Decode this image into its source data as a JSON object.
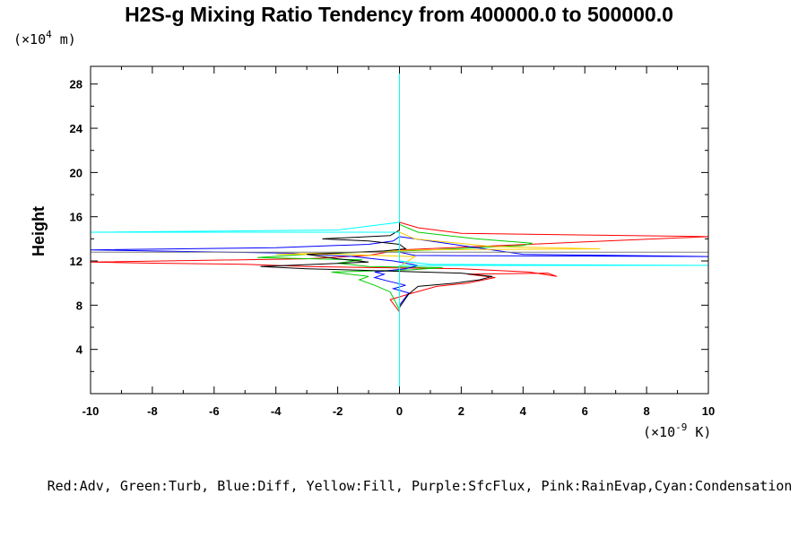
{
  "chart_data": {
    "type": "line",
    "title": "H2S-g Mixing Ratio Tendency from 400000.0 to 500000.0",
    "ylabel": "Height",
    "y_unit_prefix": "(×10",
    "y_unit_exp": "4",
    "y_unit_suffix": " m)",
    "x_unit_prefix": "(×10",
    "x_unit_exp": "-9",
    "x_unit_suffix": " K)",
    "xlim": [
      -10,
      10
    ],
    "ylim": [
      0,
      29.6
    ],
    "x_ticks": [
      -10,
      -8,
      -6,
      -4,
      -2,
      0,
      2,
      4,
      6,
      8,
      10
    ],
    "x_tick_labels": [
      "-10",
      "-8",
      "-6",
      "-4",
      "-2",
      "0",
      "2",
      "4",
      "6",
      "8",
      "10"
    ],
    "y_ticks": [
      4,
      8,
      12,
      16,
      20,
      24,
      28
    ],
    "y_tick_labels": [
      "4",
      "8",
      "12",
      "16",
      "20",
      "24",
      "28"
    ],
    "legend_text": "Red:Adv, Green:Turb, Blue:Diff, Yellow:Fill, Purple:SfcFlux, Pink:RainEvap,Cyan:Condensation",
    "series": [
      {
        "color": "#ff0000",
        "points": [
          [
            0,
            0
          ],
          [
            0,
            7.4
          ],
          [
            -0.3,
            8.5
          ],
          [
            0.3,
            9.0
          ],
          [
            1.2,
            9.7
          ],
          [
            2.2,
            10.0
          ],
          [
            3.1,
            10.5
          ],
          [
            2.2,
            10.8
          ],
          [
            4.8,
            10.9
          ],
          [
            5.1,
            10.6
          ],
          [
            4.2,
            11.0
          ],
          [
            2.0,
            11.3
          ],
          [
            -1.0,
            11.4
          ],
          [
            -3.0,
            11.5
          ],
          [
            -5.0,
            11.7
          ],
          [
            -8.0,
            11.8
          ],
          [
            -10.5,
            11.9
          ],
          [
            -3.0,
            12.2
          ],
          [
            -1.0,
            12.5
          ],
          [
            0,
            13.0
          ],
          [
            10.5,
            14.2
          ],
          [
            2.0,
            14.5
          ],
          [
            0.6,
            15.0
          ],
          [
            0,
            15.5
          ],
          [
            0,
            29.6
          ]
        ]
      },
      {
        "color": "#00cc00",
        "points": [
          [
            0,
            0
          ],
          [
            0,
            7.6
          ],
          [
            -0.3,
            9.2
          ],
          [
            -0.8,
            9.8
          ],
          [
            -1.3,
            10.3
          ],
          [
            -1.0,
            10.6
          ],
          [
            -2.2,
            11.0
          ],
          [
            0.4,
            11.2
          ],
          [
            1.4,
            11.4
          ],
          [
            -1.0,
            11.5
          ],
          [
            -2.0,
            11.8
          ],
          [
            -1.2,
            12.1
          ],
          [
            -4.6,
            12.3
          ],
          [
            -3.0,
            12.6
          ],
          [
            -1.0,
            12.8
          ],
          [
            1.0,
            13.0
          ],
          [
            4.0,
            13.4
          ],
          [
            4.3,
            13.6
          ],
          [
            2.5,
            14.0
          ],
          [
            0.6,
            14.6
          ],
          [
            0,
            15.3
          ],
          [
            0,
            29.6
          ]
        ]
      },
      {
        "color": "#0000ff",
        "points": [
          [
            0,
            0
          ],
          [
            0,
            8.0
          ],
          [
            0.3,
            9.1
          ],
          [
            -0.2,
            9.5
          ],
          [
            0.2,
            9.8
          ],
          [
            -0.4,
            10.2
          ],
          [
            -0.8,
            10.5
          ],
          [
            -0.5,
            10.8
          ],
          [
            -0.8,
            11.0
          ],
          [
            0.2,
            11.3
          ],
          [
            0.6,
            11.6
          ],
          [
            -0.2,
            12.0
          ],
          [
            -1.5,
            12.4
          ],
          [
            -3.5,
            12.7
          ],
          [
            -8.0,
            12.9
          ],
          [
            -10.5,
            13.0
          ],
          [
            -4.0,
            13.2
          ],
          [
            -1.0,
            13.5
          ],
          [
            -0.2,
            13.8
          ],
          [
            0,
            14.2
          ],
          [
            4.0,
            12.6
          ],
          [
            10.5,
            12.4
          ],
          [
            0.5,
            12.5
          ],
          [
            0,
            12.8
          ],
          [
            0,
            29.6
          ]
        ]
      },
      {
        "color": "#ffcc00",
        "points": [
          [
            0,
            0
          ],
          [
            0,
            11.5
          ],
          [
            0.5,
            12.4
          ],
          [
            -2.0,
            12.6
          ],
          [
            -4.0,
            12.6
          ],
          [
            -1.0,
            12.8
          ],
          [
            0.5,
            13.0
          ],
          [
            6.5,
            13.1
          ],
          [
            3.0,
            13.3
          ],
          [
            0.5,
            14.0
          ],
          [
            0,
            14.6
          ],
          [
            0,
            29.6
          ]
        ]
      },
      {
        "color": "#000000",
        "points": [
          [
            0,
            0
          ],
          [
            0,
            7.8
          ],
          [
            0.3,
            9.0
          ],
          [
            0.6,
            9.7
          ],
          [
            1.8,
            10.0
          ],
          [
            2.6,
            10.3
          ],
          [
            3.0,
            10.6
          ],
          [
            2.0,
            10.9
          ],
          [
            -0.5,
            11.1
          ],
          [
            -3.0,
            11.3
          ],
          [
            -4.5,
            11.5
          ],
          [
            -1.0,
            11.9
          ],
          [
            -2.0,
            12.2
          ],
          [
            -3.0,
            12.6
          ],
          [
            -0.5,
            12.9
          ],
          [
            0.2,
            13.1
          ],
          [
            0,
            13.5
          ],
          [
            -1.0,
            13.8
          ],
          [
            -2.5,
            14.0
          ],
          [
            -0.3,
            14.3
          ],
          [
            0,
            14.8
          ],
          [
            0,
            29.6
          ]
        ]
      },
      {
        "color": "#808080",
        "points": [
          [
            -10,
            12.8
          ],
          [
            10,
            12.8
          ]
        ]
      },
      {
        "color": "#00ffff",
        "points": [
          [
            0,
            0
          ],
          [
            0,
            11.6
          ],
          [
            10.5,
            11.6
          ],
          [
            1.0,
            11.7
          ],
          [
            0,
            12.0
          ],
          [
            0,
            14.6
          ],
          [
            -10.5,
            14.6
          ],
          [
            -2.0,
            14.8
          ],
          [
            0,
            15.5
          ],
          [
            0,
            29.6
          ]
        ]
      }
    ]
  }
}
